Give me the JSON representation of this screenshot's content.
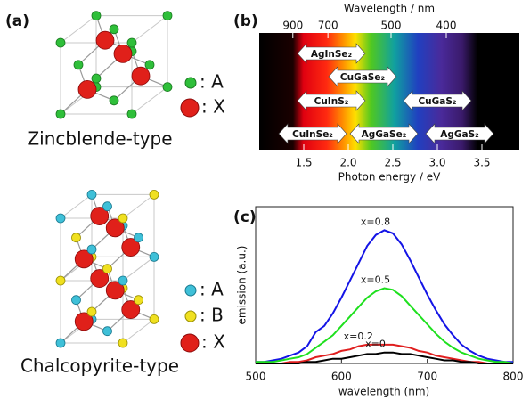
{
  "panel_a": {
    "label": "(a)",
    "structures": [
      {
        "name": "Zincblende-type",
        "legend": [
          ": A",
          ": X"
        ]
      },
      {
        "name": "Chalcopyrite-type",
        "legend": [
          ": A",
          ": B",
          ": X"
        ]
      }
    ]
  },
  "chart_data": [
    {
      "type": "bandgap",
      "label": "(b)",
      "xlabel": "Photon energy  /  eV",
      "xlim": [
        1.0,
        3.92
      ],
      "xticks": [
        1.5,
        {
          "value": 2,
          "label": "2.0"
        },
        2.5,
        {
          "value": 3,
          "label": "3.0"
        },
        3.5
      ],
      "x2label": "Wavelength  /  nm",
      "x2ticks": [
        900,
        700,
        500,
        400
      ],
      "materials": [
        {
          "name": "AgInSe₂",
          "value": 1.81
        },
        {
          "name": "CuGaSe₂",
          "value": 2.16
        },
        {
          "name": "CuInS₂",
          "value": 1.81
        },
        {
          "name": "CuGaS₂",
          "value": 3.0
        },
        {
          "name": "CuInSe₂",
          "value": 1.6
        },
        {
          "name": "AgGaSe₂",
          "value": 2.4
        },
        {
          "name": "AgGaS₂",
          "value": 3.25
        }
      ]
    },
    {
      "type": "line",
      "label": "(c)",
      "xlabel": "wavelength (nm)",
      "ylabel": "emission (a.u.)",
      "xlim": [
        500,
        800
      ],
      "xticks": [
        500,
        600,
        700,
        800
      ],
      "ylim": [
        0,
        100
      ],
      "x": [
        500,
        510,
        520,
        530,
        540,
        550,
        560,
        570,
        580,
        590,
        600,
        610,
        620,
        630,
        640,
        650,
        660,
        670,
        680,
        690,
        700,
        710,
        720,
        730,
        740,
        750,
        760,
        770,
        780,
        790,
        800
      ],
      "series": [
        {
          "name": "x=0.8",
          "color": "#1414e6",
          "values": [
            1,
            1,
            2,
            3,
            5,
            7,
            11,
            20,
            24,
            32,
            42,
            53,
            64,
            75,
            82,
            85,
            83,
            76,
            66,
            55,
            44,
            34,
            25,
            18,
            12,
            8,
            5,
            3,
            2,
            1,
            1
          ]
        },
        {
          "name": "x=0.5",
          "color": "#1ee01e",
          "values": [
            1,
            1,
            1,
            2,
            3,
            4,
            6,
            10,
            14,
            18,
            24,
            30,
            36,
            42,
            46,
            48,
            47,
            43,
            37,
            31,
            25,
            19,
            14,
            10,
            7,
            5,
            3,
            2,
            1,
            1,
            0
          ]
        },
        {
          "name": "x=0.2",
          "color": "#e01e1e",
          "values": [
            0,
            0,
            0,
            0,
            1,
            1,
            2,
            4,
            5,
            6,
            8,
            9,
            11,
            12,
            12,
            12,
            12,
            11,
            10,
            8,
            7,
            5,
            4,
            3,
            2,
            1,
            1,
            0,
            0,
            0,
            0
          ]
        },
        {
          "name": "x=0",
          "color": "#000000",
          "values": [
            0,
            0,
            0,
            0,
            0,
            0,
            1,
            1,
            2,
            3,
            3,
            4,
            5,
            6,
            6,
            7,
            7,
            6,
            6,
            5,
            4,
            3,
            2,
            2,
            1,
            1,
            0,
            0,
            0,
            0,
            0
          ]
        }
      ]
    }
  ]
}
